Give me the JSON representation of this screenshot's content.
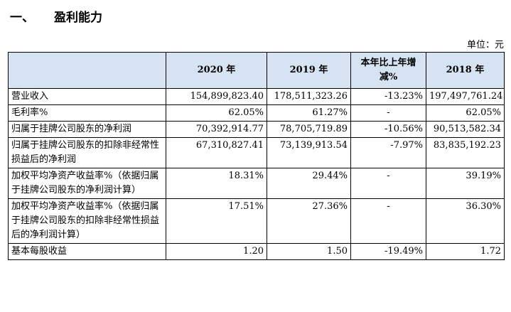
{
  "section": {
    "number": "一、",
    "title": "盈利能力"
  },
  "unit_label": "单位：元",
  "table": {
    "headers": [
      "",
      "2020 年",
      "2019 年",
      "本年比上年增减%",
      "2018 年"
    ],
    "rows": [
      [
        "营业收入",
        "154,899,823.40",
        "178,511,323.26",
        "-13.23%",
        "197,497,761.24"
      ],
      [
        "毛利率%",
        "62.05%",
        "61.27%",
        "-",
        "62.05%"
      ],
      [
        "归属于挂牌公司股东的净利润",
        "70,392,914.77",
        "78,705,719.89",
        "-10.56%",
        "90,513,582.34"
      ],
      [
        "归属于挂牌公司股东的扣除非经常性损益后的净利润",
        "67,310,827.41",
        "73,139,913.54",
        "-7.97%",
        "83,835,192.23"
      ],
      [
        "加权平均净资产收益率%（依据归属于挂牌公司股东的净利润计算）",
        "18.31%",
        "29.44%",
        "-",
        "39.19%"
      ],
      [
        "加权平均净资产收益率%（依据归属于挂牌公司股东的扣除非经常性损益后的净利润计算）",
        "17.51%",
        "27.36%",
        "-",
        "36.30%"
      ],
      [
        "基本每股收益",
        "1.20",
        "1.50",
        "-19.49%",
        "1.72"
      ]
    ]
  }
}
